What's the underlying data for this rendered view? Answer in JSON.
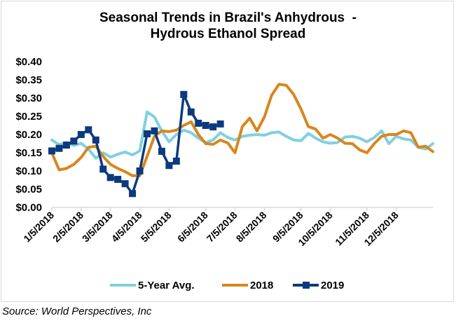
{
  "chart_data": {
    "type": "line",
    "title": [
      "Seasonal Trends in Brazil's Anhydrous  -",
      "Hydrous Ethanol Spread"
    ],
    "xlabel": "",
    "ylabel": "",
    "ylim": [
      0,
      0.4
    ],
    "y_ticks": [
      "$0.00",
      "$0.05",
      "$0.10",
      "$0.15",
      "$0.20",
      "$0.25",
      "$0.30",
      "$0.35",
      "$0.40"
    ],
    "y_tick_values": [
      0,
      0.05,
      0.1,
      0.15,
      0.2,
      0.25,
      0.3,
      0.35,
      0.4
    ],
    "x_ticks": [
      "1/5/2018",
      "2/5/2018",
      "3/5/2018",
      "4/5/2018",
      "5/5/2018",
      "6/5/2018",
      "7/5/2018",
      "8/5/2018",
      "9/5/2018",
      "10/5/2018",
      "11/5/2018",
      "12/5/2018"
    ],
    "x_tick_weeks": [
      0,
      4,
      8,
      12,
      16,
      21,
      25,
      29,
      34,
      38,
      43,
      47
    ],
    "x_weeks_total": 52,
    "grid": false,
    "legend_position": "bottom",
    "series": [
      {
        "name": "5-Year Avg.",
        "color": "#7fd0e0",
        "marker": "none",
        "values": [
          0.185,
          0.172,
          0.178,
          0.17,
          0.176,
          0.16,
          0.135,
          0.15,
          0.138,
          0.146,
          0.152,
          0.144,
          0.155,
          0.262,
          0.248,
          0.21,
          0.18,
          0.2,
          0.212,
          0.205,
          0.19,
          0.178,
          0.185,
          0.205,
          0.192,
          0.185,
          0.195,
          0.198,
          0.2,
          0.198,
          0.205,
          0.207,
          0.195,
          0.185,
          0.183,
          0.203,
          0.19,
          0.18,
          0.176,
          0.178,
          0.193,
          0.195,
          0.19,
          0.18,
          0.192,
          0.21,
          0.175,
          0.195,
          0.188,
          0.185,
          0.165,
          0.16,
          0.175
        ]
      },
      {
        "name": "2018",
        "color": "#d9861c",
        "marker": "none",
        "values": [
          0.15,
          0.103,
          0.107,
          0.118,
          0.137,
          0.165,
          0.168,
          0.14,
          0.118,
          0.107,
          0.098,
          0.087,
          0.087,
          0.14,
          0.195,
          0.21,
          0.208,
          0.212,
          0.225,
          0.235,
          0.2,
          0.175,
          0.173,
          0.185,
          0.177,
          0.15,
          0.222,
          0.245,
          0.21,
          0.248,
          0.308,
          0.338,
          0.335,
          0.31,
          0.27,
          0.222,
          0.215,
          0.19,
          0.2,
          0.19,
          0.176,
          0.175,
          0.158,
          0.15,
          0.175,
          0.195,
          0.2,
          0.2,
          0.21,
          0.205,
          0.165,
          0.168,
          0.153
        ]
      },
      {
        "name": "2019",
        "color": "#0b3a7e",
        "marker": "square",
        "values": [
          0.155,
          0.162,
          0.171,
          0.182,
          0.2,
          0.213,
          0.185,
          0.105,
          0.082,
          0.077,
          0.065,
          0.038,
          0.1,
          0.202,
          0.21,
          0.154,
          0.115,
          0.127,
          0.31,
          0.262,
          0.231,
          0.225,
          0.221,
          0.229
        ]
      }
    ]
  },
  "legend": {
    "items": [
      {
        "label": "5-Year Avg."
      },
      {
        "label": "2018"
      },
      {
        "label": "2019"
      }
    ]
  },
  "source": "Source: World Perspectives, Inc"
}
